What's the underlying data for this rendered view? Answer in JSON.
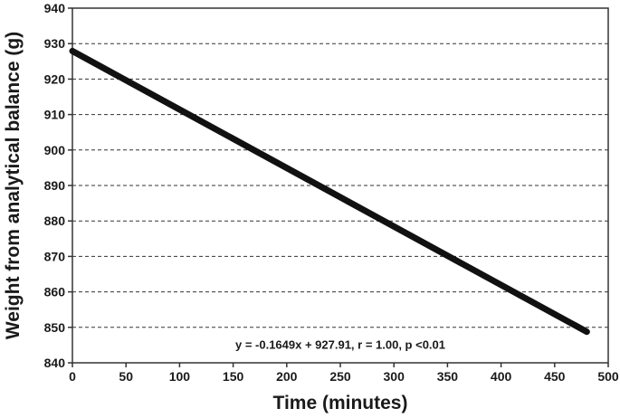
{
  "chart_data": {
    "type": "line",
    "title": "",
    "xlabel": "Time (minutes)",
    "ylabel": "Weight from analytical balance (g)",
    "xlim": [
      0,
      500
    ],
    "ylim": [
      840,
      940
    ],
    "x_ticks": [
      0,
      50,
      100,
      150,
      200,
      250,
      300,
      350,
      400,
      450,
      500
    ],
    "y_ticks": [
      840,
      850,
      860,
      870,
      880,
      890,
      900,
      910,
      920,
      930,
      940
    ],
    "grid": "horizontal-dashed",
    "legend": "none",
    "series": [
      {
        "x": [
          0,
          480
        ],
        "y": [
          927.91,
          848.76
        ],
        "color": "#111111"
      }
    ],
    "annotations": [
      {
        "text": "y = -0.1649x + 927.91, r = 1.00, p <0.01",
        "x": 250,
        "y": 845
      }
    ]
  }
}
